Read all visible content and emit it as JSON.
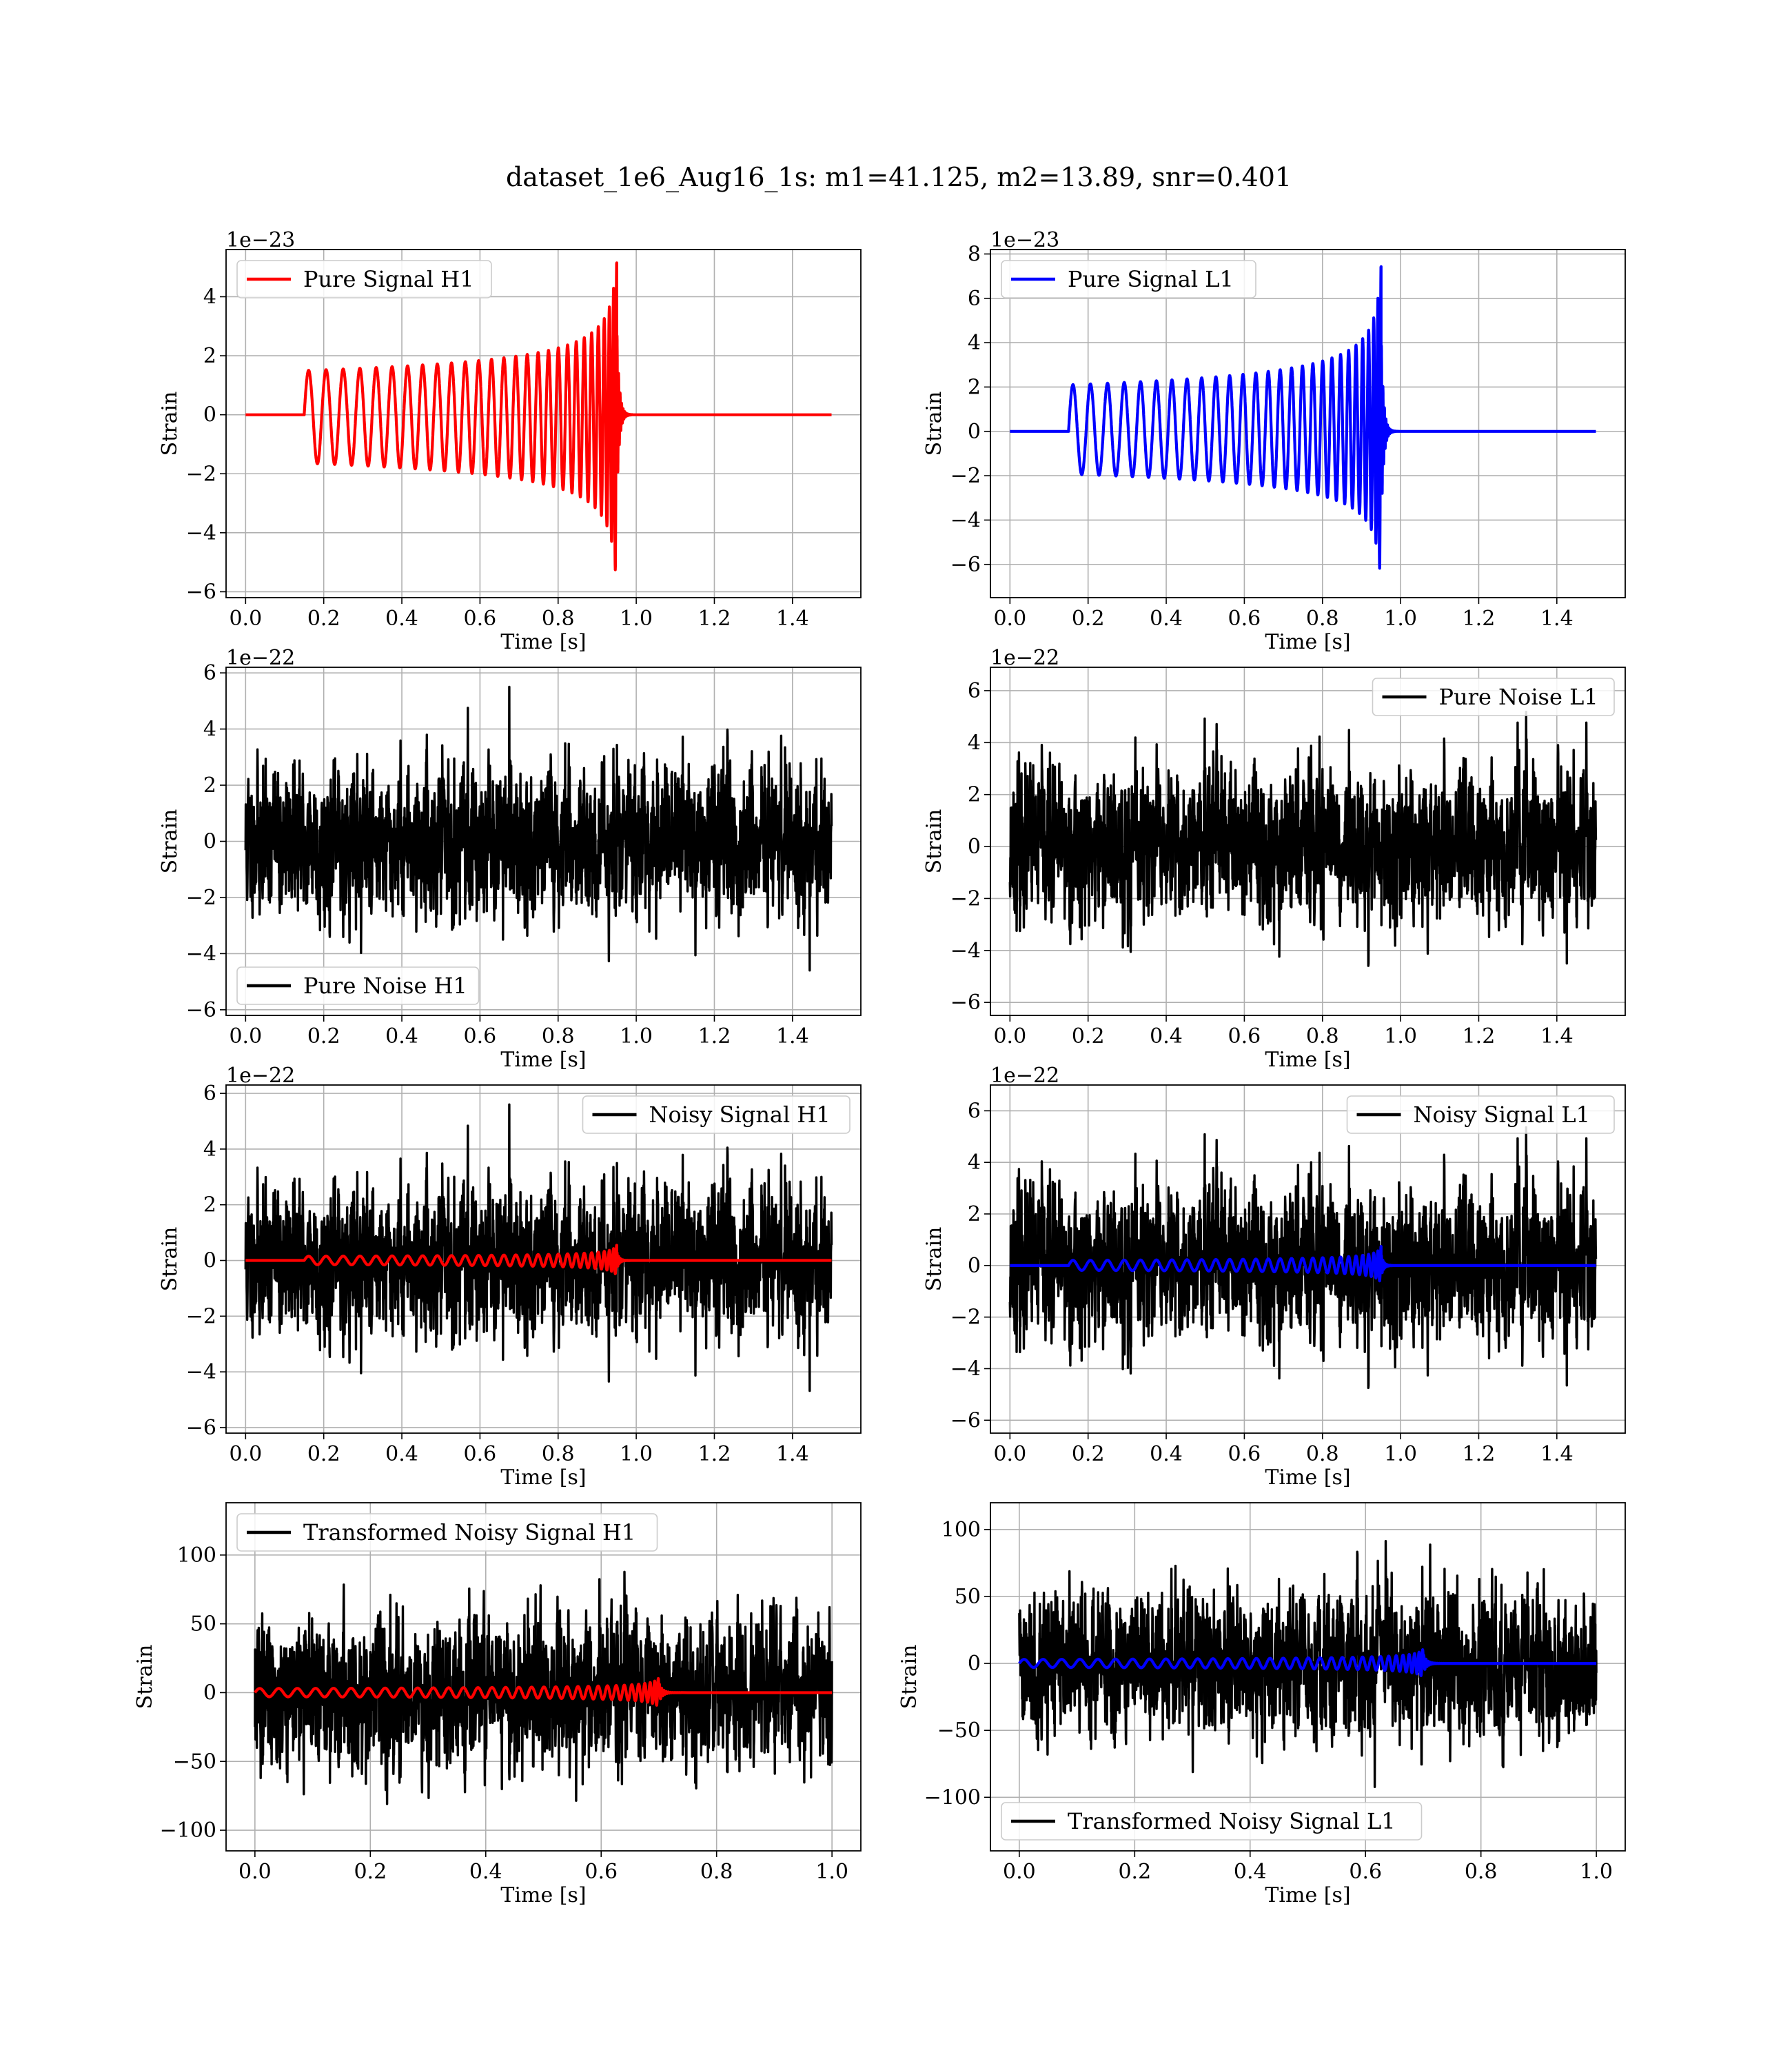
{
  "figure": {
    "suptitle": "dataset_1e6_Aug16_1s: m1=41.125, m2=13.89, snr=0.401"
  },
  "chart_data": [
    {
      "id": "pure-signal-h1",
      "type": "line",
      "xlabel": "Time [s]",
      "ylabel": "Strain",
      "offset_text": "1e−23",
      "xlim": [
        -0.05,
        1.575
      ],
      "ylim": [
        -6.2,
        5.6
      ],
      "xticks": [
        0.0,
        0.2,
        0.4,
        0.6,
        0.8,
        1.0,
        1.2,
        1.4
      ],
      "xtick_labels": [
        "0.0",
        "0.2",
        "0.4",
        "0.6",
        "0.8",
        "1.0",
        "1.2",
        "1.4"
      ],
      "yticks": [
        -6,
        -4,
        -2,
        0,
        2,
        4
      ],
      "ytick_labels": [
        "−6",
        "−4",
        "−2",
        "0",
        "2",
        "4"
      ],
      "grid": true,
      "legend_position": "upper-left",
      "series": [
        {
          "name": "Pure Signal H1",
          "color": "#ff0000",
          "kind": "chirp",
          "start": 0.15,
          "merge": 0.95,
          "end": 1.5,
          "amp0": 1.5,
          "ampPeak": 5.2,
          "ampNeg": 5.7,
          "freq0": 22
        }
      ]
    },
    {
      "id": "pure-signal-l1",
      "type": "line",
      "xlabel": "Time [s]",
      "ylabel": "Strain",
      "offset_text": "1e−23",
      "xlim": [
        -0.05,
        1.575
      ],
      "ylim": [
        -7.5,
        8.2
      ],
      "xticks": [
        0.0,
        0.2,
        0.4,
        0.6,
        0.8,
        1.0,
        1.2,
        1.4
      ],
      "xtick_labels": [
        "0.0",
        "0.2",
        "0.4",
        "0.6",
        "0.8",
        "1.0",
        "1.2",
        "1.4"
      ],
      "yticks": [
        -6,
        -4,
        -2,
        0,
        2,
        4,
        6,
        8
      ],
      "ytick_labels": [
        "−6",
        "−4",
        "−2",
        "0",
        "2",
        "4",
        "6",
        "8"
      ],
      "grid": true,
      "legend_position": "upper-left",
      "series": [
        {
          "name": "Pure Signal L1",
          "color": "#0000ff",
          "kind": "chirp",
          "start": 0.15,
          "merge": 0.95,
          "end": 1.5,
          "amp0": 2.1,
          "ampPeak": 7.5,
          "ampNeg": 6.9,
          "freq0": 22
        }
      ]
    },
    {
      "id": "pure-noise-h1",
      "type": "line",
      "xlabel": "Time [s]",
      "ylabel": "Strain",
      "offset_text": "1e−22",
      "xlim": [
        -0.05,
        1.575
      ],
      "ylim": [
        -6.2,
        6.2
      ],
      "xticks": [
        0.0,
        0.2,
        0.4,
        0.6,
        0.8,
        1.0,
        1.2,
        1.4
      ],
      "xtick_labels": [
        "0.0",
        "0.2",
        "0.4",
        "0.6",
        "0.8",
        "1.0",
        "1.2",
        "1.4"
      ],
      "yticks": [
        -6,
        -4,
        -2,
        0,
        2,
        4,
        6
      ],
      "ytick_labels": [
        "−6",
        "−4",
        "−2",
        "0",
        "2",
        "4",
        "6"
      ],
      "grid": true,
      "legend_position": "lower-left",
      "series": [
        {
          "name": "Pure Noise H1",
          "color": "#000000",
          "kind": "noise",
          "start": 0.0,
          "end": 1.5,
          "amp": 5.5,
          "seed": 11
        }
      ]
    },
    {
      "id": "pure-noise-l1",
      "type": "line",
      "xlabel": "Time [s]",
      "ylabel": "Strain",
      "offset_text": "1e−22",
      "xlim": [
        -0.05,
        1.575
      ],
      "ylim": [
        -6.5,
        6.9
      ],
      "xticks": [
        0.0,
        0.2,
        0.4,
        0.6,
        0.8,
        1.0,
        1.2,
        1.4
      ],
      "xtick_labels": [
        "0.0",
        "0.2",
        "0.4",
        "0.6",
        "0.8",
        "1.0",
        "1.2",
        "1.4"
      ],
      "yticks": [
        -6,
        -4,
        -2,
        0,
        2,
        4,
        6
      ],
      "ytick_labels": [
        "−6",
        "−4",
        "−2",
        "0",
        "2",
        "4",
        "6"
      ],
      "grid": true,
      "legend_position": "upper-right",
      "series": [
        {
          "name": "Pure Noise L1",
          "color": "#000000",
          "kind": "noise",
          "start": 0.0,
          "end": 1.5,
          "amp": 6.0,
          "seed": 23
        }
      ]
    },
    {
      "id": "noisy-signal-h1",
      "type": "line",
      "xlabel": "Time [s]",
      "ylabel": "Strain",
      "offset_text": "1e−22",
      "xlim": [
        -0.05,
        1.575
      ],
      "ylim": [
        -6.2,
        6.3
      ],
      "xticks": [
        0.0,
        0.2,
        0.4,
        0.6,
        0.8,
        1.0,
        1.2,
        1.4
      ],
      "xtick_labels": [
        "0.0",
        "0.2",
        "0.4",
        "0.6",
        "0.8",
        "1.0",
        "1.2",
        "1.4"
      ],
      "yticks": [
        -6,
        -4,
        -2,
        0,
        2,
        4,
        6
      ],
      "ytick_labels": [
        "−6",
        "−4",
        "−2",
        "0",
        "2",
        "4",
        "6"
      ],
      "grid": true,
      "legend_position": "upper-right",
      "series": [
        {
          "name": "Noisy Signal H1",
          "color": "#000000",
          "kind": "noise",
          "start": 0.0,
          "end": 1.5,
          "amp": 5.6,
          "seed": 11
        },
        {
          "name": "",
          "color": "#ff0000",
          "kind": "chirp",
          "start": 0.15,
          "merge": 0.95,
          "end": 1.5,
          "amp0": 0.15,
          "ampPeak": 0.55,
          "ampNeg": 0.55,
          "freq0": 22
        }
      ]
    },
    {
      "id": "noisy-signal-l1",
      "type": "line",
      "xlabel": "Time [s]",
      "ylabel": "Strain",
      "offset_text": "1e−22",
      "xlim": [
        -0.05,
        1.575
      ],
      "ylim": [
        -6.5,
        7.0
      ],
      "xticks": [
        0.0,
        0.2,
        0.4,
        0.6,
        0.8,
        1.0,
        1.2,
        1.4
      ],
      "xtick_labels": [
        "0.0",
        "0.2",
        "0.4",
        "0.6",
        "0.8",
        "1.0",
        "1.2",
        "1.4"
      ],
      "yticks": [
        -6,
        -4,
        -2,
        0,
        2,
        4,
        6
      ],
      "ytick_labels": [
        "−6",
        "−4",
        "−2",
        "0",
        "2",
        "4",
        "6"
      ],
      "grid": true,
      "legend_position": "upper-right",
      "series": [
        {
          "name": "Noisy Signal L1",
          "color": "#000000",
          "kind": "noise",
          "start": 0.0,
          "end": 1.5,
          "amp": 6.2,
          "seed": 23
        },
        {
          "name": "",
          "color": "#0000ff",
          "kind": "chirp",
          "start": 0.15,
          "merge": 0.95,
          "end": 1.5,
          "amp0": 0.2,
          "ampPeak": 0.75,
          "ampNeg": 0.7,
          "freq0": 22
        }
      ]
    },
    {
      "id": "transformed-noisy-signal-h1",
      "type": "line",
      "xlabel": "Time [s]",
      "ylabel": "Strain",
      "offset_text": "",
      "xlim": [
        -0.05,
        1.05
      ],
      "ylim": [
        -115,
        138
      ],
      "xticks": [
        0.0,
        0.2,
        0.4,
        0.6,
        0.8,
        1.0
      ],
      "xtick_labels": [
        "0.0",
        "0.2",
        "0.4",
        "0.6",
        "0.8",
        "1.0"
      ],
      "yticks": [
        -100,
        -50,
        0,
        50,
        100
      ],
      "ytick_labels": [
        "−100",
        "−50",
        "0",
        "50",
        "100"
      ],
      "grid": true,
      "legend_position": "upper-left",
      "series": [
        {
          "name": "Transformed Noisy Signal H1",
          "color": "#000000",
          "kind": "noise",
          "start": 0.0,
          "end": 1.0,
          "amp": 110,
          "seed": 37
        },
        {
          "name": "",
          "color": "#ff0000",
          "kind": "chirp",
          "start": 0.0,
          "merge": 0.7,
          "end": 1.0,
          "amp0": 3,
          "ampPeak": 12,
          "ampNeg": 12,
          "freq0": 30
        }
      ]
    },
    {
      "id": "transformed-noisy-signal-l1",
      "type": "line",
      "xlabel": "Time [s]",
      "ylabel": "Strain",
      "offset_text": "",
      "xlim": [
        -0.05,
        1.05
      ],
      "ylim": [
        -140,
        120
      ],
      "xticks": [
        0.0,
        0.2,
        0.4,
        0.6,
        0.8,
        1.0
      ],
      "xtick_labels": [
        "0.0",
        "0.2",
        "0.4",
        "0.6",
        "0.8",
        "1.0"
      ],
      "yticks": [
        -100,
        -50,
        0,
        50,
        100
      ],
      "ytick_labels": [
        "−100",
        "−50",
        "0",
        "50",
        "100"
      ],
      "grid": true,
      "legend_position": "lower-left",
      "series": [
        {
          "name": "Transformed Noisy Signal L1",
          "color": "#000000",
          "kind": "noise",
          "start": 0.0,
          "end": 1.0,
          "amp": 110,
          "seed": 41
        },
        {
          "name": "",
          "color": "#0000ff",
          "kind": "chirp",
          "start": 0.0,
          "merge": 0.7,
          "end": 1.0,
          "amp0": 3,
          "ampPeak": 12,
          "ampNeg": 12,
          "freq0": 30
        }
      ]
    }
  ]
}
